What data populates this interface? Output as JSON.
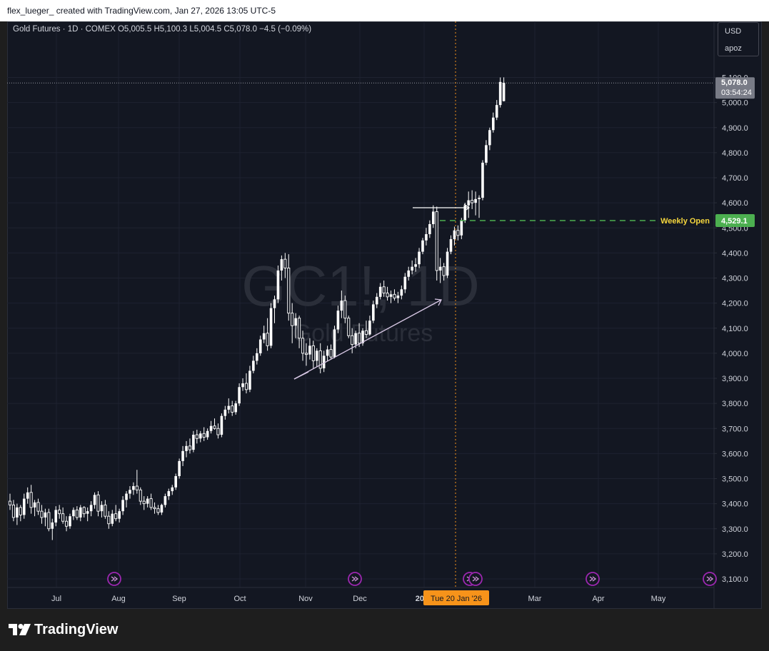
{
  "header": {
    "text": "flex_lueger_ created with TradingView.com, Jan 27, 2026 13:05 UTC-5"
  },
  "symbol_line": "Gold Futures · 1D · COMEX  O5,005.5  H5,100.3  L5,004.5  C5,078.0  −4.5 (−0.09%)",
  "currency": {
    "code": "USD",
    "unit": "apoz"
  },
  "watermark": {
    "ticker": "GC1!, 1D",
    "name": "Gold Futures"
  },
  "footer": {
    "brand": "TradingView"
  },
  "colors": {
    "background": "#131722",
    "candle": "#ffffff",
    "weekly_open": "#4caf50",
    "weekly_open_label": "#f5d63d",
    "crosshair": "#f7931a",
    "trendline": "#d9c9e6",
    "event_icon": "#9c27b0"
  },
  "chart_data": {
    "type": "candlestick",
    "title": "Gold Futures · 1D · COMEX",
    "ylabel": "USD",
    "ylim": [
      3050,
      5150
    ],
    "y_ticks": [
      "5,100.0",
      "5,000.0",
      "4,900.0",
      "4,800.0",
      "4,700.0",
      "4,600.0",
      "4,500.0",
      "4,400.0",
      "4,300.0",
      "4,200.0",
      "4,100.0",
      "4,000.0",
      "3,900.0",
      "3,800.0",
      "3,700.0",
      "3,600.0",
      "3,500.0",
      "3,400.0",
      "3,300.0",
      "3,200.0",
      "3,100.0"
    ],
    "x_ticks": [
      "Jul",
      "Aug",
      "Sep",
      "Oct",
      "Nov",
      "Dec",
      "2026",
      "Mar",
      "Apr",
      "May"
    ],
    "last_price": {
      "value": "5,078.0",
      "countdown": "03:54:24"
    },
    "weekly_open": {
      "label": "Weekly Open",
      "value": "4,529.1"
    },
    "crosshair_date": "Tue 20 Jan '26",
    "ohlc": [
      {
        "o": 3410,
        "h": 3440,
        "l": 3375,
        "c": 3395
      },
      {
        "o": 3395,
        "h": 3415,
        "l": 3330,
        "c": 3345
      },
      {
        "o": 3345,
        "h": 3400,
        "l": 3315,
        "c": 3385
      },
      {
        "o": 3385,
        "h": 3395,
        "l": 3330,
        "c": 3355
      },
      {
        "o": 3355,
        "h": 3440,
        "l": 3340,
        "c": 3420
      },
      {
        "o": 3420,
        "h": 3465,
        "l": 3400,
        "c": 3445
      },
      {
        "o": 3445,
        "h": 3475,
        "l": 3360,
        "c": 3385
      },
      {
        "o": 3385,
        "h": 3415,
        "l": 3350,
        "c": 3405
      },
      {
        "o": 3405,
        "h": 3420,
        "l": 3355,
        "c": 3370
      },
      {
        "o": 3370,
        "h": 3395,
        "l": 3320,
        "c": 3345
      },
      {
        "o": 3345,
        "h": 3380,
        "l": 3310,
        "c": 3365
      },
      {
        "o": 3365,
        "h": 3380,
        "l": 3290,
        "c": 3300
      },
      {
        "o": 3300,
        "h": 3340,
        "l": 3255,
        "c": 3325
      },
      {
        "o": 3325,
        "h": 3390,
        "l": 3310,
        "c": 3375
      },
      {
        "o": 3375,
        "h": 3395,
        "l": 3340,
        "c": 3360
      },
      {
        "o": 3360,
        "h": 3385,
        "l": 3320,
        "c": 3330
      },
      {
        "o": 3330,
        "h": 3350,
        "l": 3290,
        "c": 3310
      },
      {
        "o": 3310,
        "h": 3360,
        "l": 3300,
        "c": 3350
      },
      {
        "o": 3350,
        "h": 3385,
        "l": 3335,
        "c": 3375
      },
      {
        "o": 3375,
        "h": 3390,
        "l": 3335,
        "c": 3345
      },
      {
        "o": 3345,
        "h": 3395,
        "l": 3330,
        "c": 3385
      },
      {
        "o": 3385,
        "h": 3390,
        "l": 3345,
        "c": 3360
      },
      {
        "o": 3360,
        "h": 3385,
        "l": 3330,
        "c": 3370
      },
      {
        "o": 3370,
        "h": 3410,
        "l": 3350,
        "c": 3395
      },
      {
        "o": 3395,
        "h": 3445,
        "l": 3380,
        "c": 3435
      },
      {
        "o": 3435,
        "h": 3450,
        "l": 3350,
        "c": 3370
      },
      {
        "o": 3370,
        "h": 3410,
        "l": 3345,
        "c": 3395
      },
      {
        "o": 3395,
        "h": 3415,
        "l": 3340,
        "c": 3350
      },
      {
        "o": 3350,
        "h": 3370,
        "l": 3300,
        "c": 3320
      },
      {
        "o": 3320,
        "h": 3375,
        "l": 3310,
        "c": 3360
      },
      {
        "o": 3360,
        "h": 3395,
        "l": 3330,
        "c": 3340
      },
      {
        "o": 3340,
        "h": 3380,
        "l": 3325,
        "c": 3370
      },
      {
        "o": 3370,
        "h": 3430,
        "l": 3355,
        "c": 3415
      },
      {
        "o": 3415,
        "h": 3450,
        "l": 3385,
        "c": 3440
      },
      {
        "o": 3440,
        "h": 3470,
        "l": 3420,
        "c": 3455
      },
      {
        "o": 3455,
        "h": 3485,
        "l": 3435,
        "c": 3470
      },
      {
        "o": 3470,
        "h": 3535,
        "l": 3440,
        "c": 3455
      },
      {
        "o": 3455,
        "h": 3465,
        "l": 3395,
        "c": 3410
      },
      {
        "o": 3410,
        "h": 3430,
        "l": 3375,
        "c": 3400
      },
      {
        "o": 3400,
        "h": 3430,
        "l": 3385,
        "c": 3420
      },
      {
        "o": 3420,
        "h": 3440,
        "l": 3375,
        "c": 3385
      },
      {
        "o": 3385,
        "h": 3405,
        "l": 3360,
        "c": 3380
      },
      {
        "o": 3380,
        "h": 3395,
        "l": 3355,
        "c": 3365
      },
      {
        "o": 3365,
        "h": 3400,
        "l": 3355,
        "c": 3395
      },
      {
        "o": 3395,
        "h": 3440,
        "l": 3385,
        "c": 3430
      },
      {
        "o": 3430,
        "h": 3460,
        "l": 3415,
        "c": 3450
      },
      {
        "o": 3450,
        "h": 3475,
        "l": 3435,
        "c": 3465
      },
      {
        "o": 3465,
        "h": 3520,
        "l": 3455,
        "c": 3510
      },
      {
        "o": 3510,
        "h": 3580,
        "l": 3500,
        "c": 3570
      },
      {
        "o": 3570,
        "h": 3630,
        "l": 3550,
        "c": 3610
      },
      {
        "o": 3610,
        "h": 3650,
        "l": 3585,
        "c": 3630
      },
      {
        "o": 3630,
        "h": 3660,
        "l": 3600,
        "c": 3615
      },
      {
        "o": 3615,
        "h": 3690,
        "l": 3605,
        "c": 3675
      },
      {
        "o": 3675,
        "h": 3695,
        "l": 3640,
        "c": 3660
      },
      {
        "o": 3660,
        "h": 3690,
        "l": 3645,
        "c": 3680
      },
      {
        "o": 3680,
        "h": 3705,
        "l": 3650,
        "c": 3665
      },
      {
        "o": 3665,
        "h": 3700,
        "l": 3655,
        "c": 3690
      },
      {
        "o": 3690,
        "h": 3730,
        "l": 3680,
        "c": 3710
      },
      {
        "o": 3710,
        "h": 3740,
        "l": 3695,
        "c": 3700
      },
      {
        "o": 3700,
        "h": 3720,
        "l": 3660,
        "c": 3675
      },
      {
        "o": 3675,
        "h": 3760,
        "l": 3665,
        "c": 3750
      },
      {
        "o": 3750,
        "h": 3790,
        "l": 3735,
        "c": 3775
      },
      {
        "o": 3775,
        "h": 3820,
        "l": 3760,
        "c": 3790
      },
      {
        "o": 3790,
        "h": 3810,
        "l": 3750,
        "c": 3765
      },
      {
        "o": 3765,
        "h": 3810,
        "l": 3755,
        "c": 3800
      },
      {
        "o": 3800,
        "h": 3880,
        "l": 3790,
        "c": 3865
      },
      {
        "o": 3865,
        "h": 3900,
        "l": 3850,
        "c": 3880
      },
      {
        "o": 3880,
        "h": 3920,
        "l": 3840,
        "c": 3855
      },
      {
        "o": 3855,
        "h": 3950,
        "l": 3845,
        "c": 3930
      },
      {
        "o": 3930,
        "h": 3990,
        "l": 3920,
        "c": 3970
      },
      {
        "o": 3970,
        "h": 4020,
        "l": 3955,
        "c": 4000
      },
      {
        "o": 4000,
        "h": 4070,
        "l": 3990,
        "c": 4055
      },
      {
        "o": 4055,
        "h": 4110,
        "l": 4040,
        "c": 4080
      },
      {
        "o": 4080,
        "h": 4140,
        "l": 4010,
        "c": 4030
      },
      {
        "o": 4030,
        "h": 4200,
        "l": 4020,
        "c": 4180
      },
      {
        "o": 4180,
        "h": 4230,
        "l": 4120,
        "c": 4215
      },
      {
        "o": 4215,
        "h": 4350,
        "l": 4200,
        "c": 4330
      },
      {
        "o": 4330,
        "h": 4390,
        "l": 4290,
        "c": 4375
      },
      {
        "o": 4375,
        "h": 4400,
        "l": 4300,
        "c": 4340
      },
      {
        "o": 4340,
        "h": 4395,
        "l": 4130,
        "c": 4160
      },
      {
        "o": 4160,
        "h": 4200,
        "l": 4040,
        "c": 4110
      },
      {
        "o": 4110,
        "h": 4160,
        "l": 4060,
        "c": 4140
      },
      {
        "o": 4140,
        "h": 4150,
        "l": 4020,
        "c": 4060
      },
      {
        "o": 4060,
        "h": 4090,
        "l": 3970,
        "c": 4000
      },
      {
        "o": 4000,
        "h": 4040,
        "l": 3950,
        "c": 3995
      },
      {
        "o": 3995,
        "h": 4060,
        "l": 3975,
        "c": 4030
      },
      {
        "o": 4030,
        "h": 4050,
        "l": 3940,
        "c": 3970
      },
      {
        "o": 3970,
        "h": 4020,
        "l": 3945,
        "c": 4010
      },
      {
        "o": 4010,
        "h": 4040,
        "l": 3920,
        "c": 3940
      },
      {
        "o": 3940,
        "h": 4010,
        "l": 3925,
        "c": 3990
      },
      {
        "o": 3990,
        "h": 4030,
        "l": 3970,
        "c": 4015
      },
      {
        "o": 4015,
        "h": 4035,
        "l": 3975,
        "c": 3985
      },
      {
        "o": 3985,
        "h": 4110,
        "l": 3980,
        "c": 4095
      },
      {
        "o": 4095,
        "h": 4190,
        "l": 4080,
        "c": 4170
      },
      {
        "o": 4170,
        "h": 4250,
        "l": 4140,
        "c": 4210
      },
      {
        "o": 4210,
        "h": 4230,
        "l": 4120,
        "c": 4140
      },
      {
        "o": 4140,
        "h": 4150,
        "l": 4060,
        "c": 4070
      },
      {
        "o": 4070,
        "h": 4100,
        "l": 4000,
        "c": 4035
      },
      {
        "o": 4035,
        "h": 4090,
        "l": 4020,
        "c": 4080
      },
      {
        "o": 4080,
        "h": 4120,
        "l": 4025,
        "c": 4040
      },
      {
        "o": 4040,
        "h": 4100,
        "l": 4030,
        "c": 4090
      },
      {
        "o": 4090,
        "h": 4130,
        "l": 4060,
        "c": 4075
      },
      {
        "o": 4075,
        "h": 4150,
        "l": 4070,
        "c": 4130
      },
      {
        "o": 4130,
        "h": 4210,
        "l": 4120,
        "c": 4195
      },
      {
        "o": 4195,
        "h": 4240,
        "l": 4180,
        "c": 4225
      },
      {
        "o": 4225,
        "h": 4280,
        "l": 4215,
        "c": 4265
      },
      {
        "o": 4265,
        "h": 4290,
        "l": 4225,
        "c": 4240
      },
      {
        "o": 4240,
        "h": 4265,
        "l": 4210,
        "c": 4225
      },
      {
        "o": 4225,
        "h": 4250,
        "l": 4200,
        "c": 4235
      },
      {
        "o": 4235,
        "h": 4255,
        "l": 4210,
        "c": 4220
      },
      {
        "o": 4220,
        "h": 4245,
        "l": 4200,
        "c": 4230
      },
      {
        "o": 4230,
        "h": 4270,
        "l": 4215,
        "c": 4255
      },
      {
        "o": 4255,
        "h": 4320,
        "l": 4240,
        "c": 4305
      },
      {
        "o": 4305,
        "h": 4345,
        "l": 4290,
        "c": 4330
      },
      {
        "o": 4330,
        "h": 4370,
        "l": 4315,
        "c": 4345
      },
      {
        "o": 4345,
        "h": 4380,
        "l": 4325,
        "c": 4355
      },
      {
        "o": 4355,
        "h": 4420,
        "l": 4340,
        "c": 4405
      },
      {
        "o": 4405,
        "h": 4460,
        "l": 4395,
        "c": 4450
      },
      {
        "o": 4450,
        "h": 4500,
        "l": 4430,
        "c": 4475
      },
      {
        "o": 4475,
        "h": 4530,
        "l": 4460,
        "c": 4515
      },
      {
        "o": 4515,
        "h": 4590,
        "l": 4500,
        "c": 4565
      },
      {
        "o": 4565,
        "h": 4585,
        "l": 4290,
        "c": 4330
      },
      {
        "o": 4330,
        "h": 4380,
        "l": 4280,
        "c": 4345
      },
      {
        "o": 4345,
        "h": 4360,
        "l": 4290,
        "c": 4310
      },
      {
        "o": 4310,
        "h": 4420,
        "l": 4300,
        "c": 4405
      },
      {
        "o": 4405,
        "h": 4470,
        "l": 4395,
        "c": 4455
      },
      {
        "o": 4455,
        "h": 4505,
        "l": 4430,
        "c": 4490
      },
      {
        "o": 4490,
        "h": 4510,
        "l": 4450,
        "c": 4470
      },
      {
        "o": 4470,
        "h": 4540,
        "l": 4455,
        "c": 4530
      },
      {
        "o": 4530,
        "h": 4600,
        "l": 4520,
        "c": 4590
      },
      {
        "o": 4590,
        "h": 4645,
        "l": 4540,
        "c": 4610
      },
      {
        "o": 4610,
        "h": 4650,
        "l": 4575,
        "c": 4600
      },
      {
        "o": 4600,
        "h": 4645,
        "l": 4550,
        "c": 4615
      },
      {
        "o": 4615,
        "h": 4630,
        "l": 4540,
        "c": 4620
      },
      {
        "o": 4620,
        "h": 4770,
        "l": 4610,
        "c": 4760
      },
      {
        "o": 4760,
        "h": 4850,
        "l": 4750,
        "c": 4830
      },
      {
        "o": 4830,
        "h": 4900,
        "l": 4810,
        "c": 4890
      },
      {
        "o": 4890,
        "h": 4960,
        "l": 4880,
        "c": 4940
      },
      {
        "o": 4940,
        "h": 5010,
        "l": 4930,
        "c": 4990
      },
      {
        "o": 4990,
        "h": 5100,
        "l": 4980,
        "c": 5082
      },
      {
        "o": 5005.5,
        "h": 5100.3,
        "l": 5004.5,
        "c": 5078
      }
    ]
  }
}
